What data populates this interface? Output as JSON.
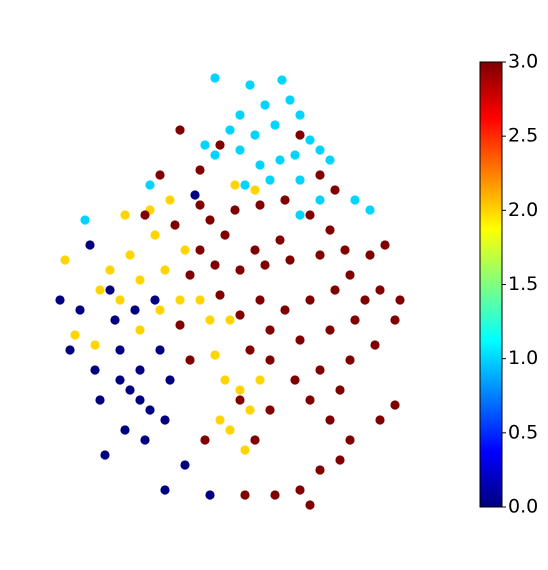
{
  "chart_data": {
    "type": "scatter",
    "colorscale": "jet",
    "clim": [
      0,
      3
    ],
    "xlim": [
      30,
      430
    ],
    "ylim": [
      30,
      490
    ],
    "series": [
      {
        "c": 1,
        "x": [
          215,
          250,
          282,
          290,
          265,
          240,
          230,
          255,
          275,
          300,
          310,
          295,
          280,
          320,
          330,
          260,
          240,
          215,
          205,
          300,
          320,
          300,
          355,
          370,
          85,
          150,
          245,
          270
        ],
        "y": [
          472,
          465,
          470,
          450,
          445,
          435,
          420,
          415,
          425,
          435,
          410,
          395,
          390,
          400,
          390,
          385,
          400,
          395,
          405,
          370,
          350,
          335,
          350,
          340,
          330,
          365,
          365,
          370
        ]
      },
      {
        "c": 0,
        "x": [
          195,
          90,
          110,
          80,
          70,
          95,
          120,
          140,
          160,
          130,
          150,
          125,
          145,
          165,
          100,
          115,
          135,
          155,
          60,
          170,
          185,
          165,
          210,
          105,
          140,
          120
        ],
        "y": [
          355,
          305,
          260,
          240,
          200,
          180,
          200,
          180,
          200,
          160,
          140,
          120,
          110,
          130,
          150,
          230,
          240,
          250,
          250,
          170,
          85,
          60,
          55,
          95,
          150,
          170
        ]
      },
      {
        "c": 2,
        "x": [
          125,
          150,
          170,
          155,
          130,
          110,
          100,
          120,
          140,
          165,
          185,
          200,
          180,
          210,
          230,
          75,
          95,
          140,
          160,
          225,
          240,
          250,
          230,
          245,
          220,
          260,
          215,
          65,
          235,
          255
        ],
        "y": [
          335,
          340,
          350,
          315,
          295,
          280,
          260,
          250,
          270,
          280,
          300,
          250,
          250,
          230,
          230,
          215,
          205,
          220,
          240,
          170,
          160,
          140,
          120,
          100,
          130,
          170,
          195,
          290,
          365,
          360
        ]
      },
      {
        "c": 3,
        "x": [
          180,
          220,
          300,
          320,
          335,
          200,
          210,
          235,
          260,
          285,
          310,
          330,
          280,
          255,
          225,
          200,
          190,
          215,
          240,
          265,
          290,
          320,
          345,
          370,
          385,
          350,
          380,
          400,
          395,
          365,
          335,
          310,
          285,
          260,
          240,
          220,
          270,
          300,
          330,
          355,
          375,
          350,
          320,
          295,
          270,
          250,
          340,
          310,
          330,
          350,
          340,
          320,
          300,
          275,
          255,
          240,
          270,
          395,
          380,
          205,
          160,
          200,
          175,
          145,
          245,
          310,
          180,
          190
        ],
        "y": [
          420,
          405,
          415,
          375,
          360,
          345,
          330,
          340,
          345,
          350,
          335,
          320,
          310,
          300,
          315,
          300,
          275,
          285,
          280,
          285,
          290,
          295,
          300,
          295,
          305,
          275,
          260,
          250,
          230,
          250,
          260,
          250,
          240,
          250,
          235,
          255,
          220,
          210,
          220,
          230,
          205,
          190,
          180,
          170,
          190,
          200,
          160,
          150,
          130,
          110,
          90,
          80,
          60,
          55,
          110,
          150,
          140,
          145,
          130,
          110,
          375,
          380,
          325,
          335,
          55,
          45,
          225,
          190
        ]
      }
    ],
    "cticks": [
      {
        "value": 0,
        "label": "0.0"
      },
      {
        "value": 0.5,
        "label": "0.5"
      },
      {
        "value": 1,
        "label": "1.0"
      },
      {
        "value": 1.5,
        "label": "1.5"
      },
      {
        "value": 2,
        "label": "2.0"
      },
      {
        "value": 2.5,
        "label": "2.5"
      },
      {
        "value": 3,
        "label": "3.0"
      }
    ]
  }
}
